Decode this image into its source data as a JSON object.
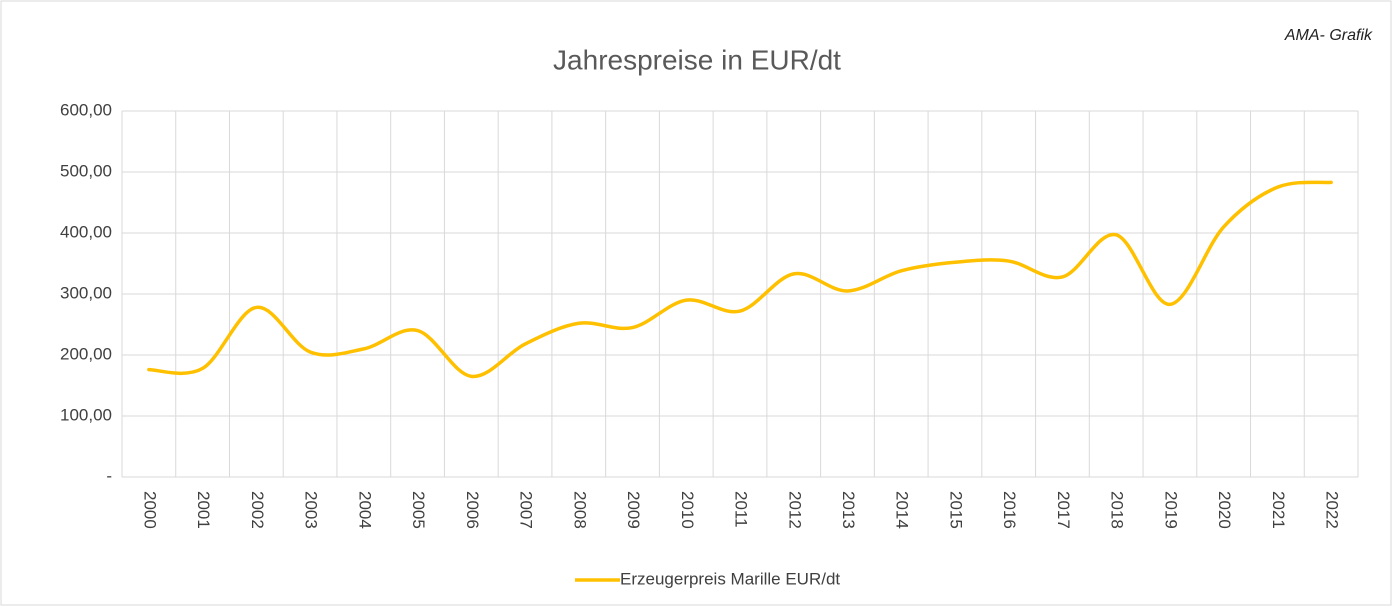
{
  "chart_data": {
    "type": "line",
    "title": "Jahrespreise in EUR/dt",
    "annotation": "AMA- Grafik",
    "categories": [
      "2000",
      "2001",
      "2002",
      "2003",
      "2004",
      "2005",
      "2006",
      "2007",
      "2008",
      "2009",
      "2010",
      "2011",
      "2012",
      "2013",
      "2014",
      "2015",
      "2016",
      "2017",
      "2018",
      "2019",
      "2020",
      "2021",
      "2022"
    ],
    "series": [
      {
        "name": "Erzeugerpreis Marille EUR/dt",
        "color": "#ffc000",
        "values": [
          176,
          178,
          278,
          205,
          210,
          240,
          165,
          218,
          252,
          245,
          290,
          272,
          333,
          305,
          338,
          352,
          354,
          328,
          397,
          283,
          410,
          475,
          483
        ]
      }
    ],
    "ylim": [
      0,
      600
    ],
    "yticks": [
      {
        "value": 0,
        "label": "-"
      },
      {
        "value": 100,
        "label": "100,00"
      },
      {
        "value": 200,
        "label": "200,00"
      },
      {
        "value": 300,
        "label": "300,00"
      },
      {
        "value": 400,
        "label": "400,00"
      },
      {
        "value": 500,
        "label": "500,00"
      },
      {
        "value": 600,
        "label": "600,00"
      }
    ],
    "grid": true,
    "smooth": true,
    "legend": "bottom"
  }
}
